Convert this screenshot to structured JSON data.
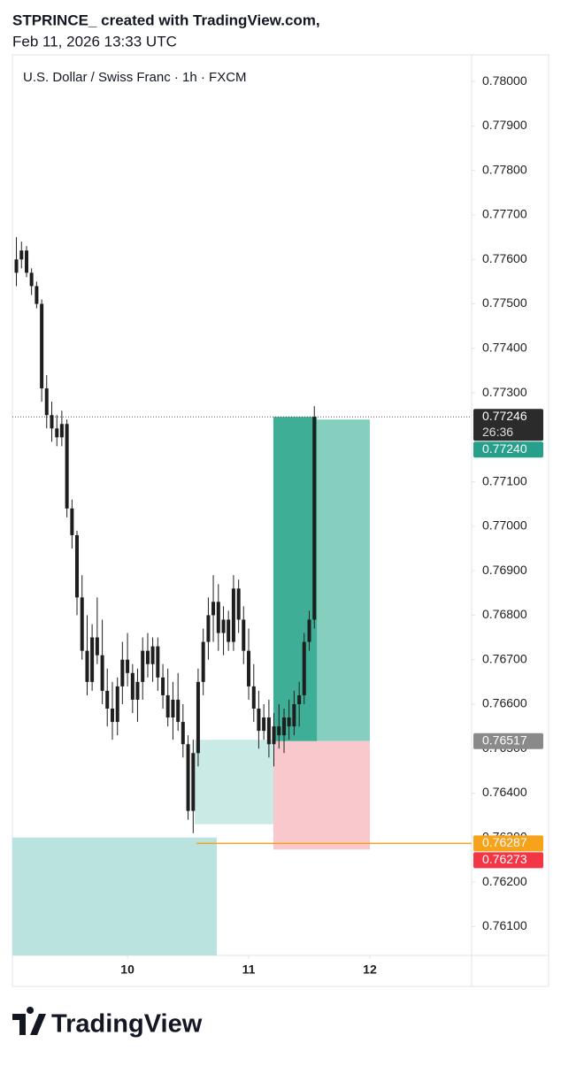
{
  "header": {
    "line1": "STPRINCE_ created with TradingView.com,",
    "line2": "Feb 11, 2026 13:33 UTC"
  },
  "chart_data": {
    "type": "candlestick",
    "title": "U.S. Dollar / Swiss Franc · 1h · FXCM",
    "color": "#1e1e1e",
    "x": [
      9.083,
      9.125,
      9.167,
      9.208,
      9.25,
      9.292,
      9.333,
      9.375,
      9.417,
      9.458,
      9.5,
      9.542,
      9.583,
      9.625,
      9.667,
      9.708,
      9.75,
      9.792,
      9.833,
      9.875,
      9.917,
      9.958,
      10,
      10.042,
      10.083,
      10.125,
      10.167,
      10.208,
      10.25,
      10.292,
      10.333,
      10.375,
      10.417,
      10.458,
      10.5,
      10.542,
      10.583,
      10.625,
      10.667,
      10.708,
      10.75,
      10.792,
      10.833,
      10.875,
      10.917,
      10.958,
      11,
      11.042,
      11.083,
      11.125,
      11.167,
      11.208,
      11.25,
      11.292,
      11.333,
      11.375,
      11.417,
      11.458,
      11.5,
      11.542
    ],
    "open": [
      0.7757,
      0.776,
      0.7762,
      0.7757,
      0.7754,
      0.775,
      0.7731,
      0.7725,
      0.7722,
      0.772,
      0.7723,
      0.7704,
      0.7698,
      0.7684,
      0.7672,
      0.7665,
      0.7675,
      0.7671,
      0.7663,
      0.7659,
      0.7656,
      0.7664,
      0.767,
      0.7667,
      0.7661,
      0.7665,
      0.7672,
      0.7669,
      0.7673,
      0.7666,
      0.7662,
      0.7657,
      0.7661,
      0.7656,
      0.7651,
      0.7636,
      0.7649,
      0.7665,
      0.7674,
      0.768,
      0.7683,
      0.7676,
      0.7679,
      0.7674,
      0.7686,
      0.7679,
      0.7672,
      0.7664,
      0.7659,
      0.7654,
      0.7657,
      0.7651,
      0.7655,
      0.7653,
      0.7657,
      0.7655,
      0.766,
      0.7662,
      0.7674,
      0.7679
    ],
    "high": [
      0.7765,
      0.7764,
      0.7763,
      0.7758,
      0.7755,
      0.7751,
      0.7734,
      0.7728,
      0.7725,
      0.7726,
      0.7724,
      0.7706,
      0.7699,
      0.7689,
      0.768,
      0.7678,
      0.7684,
      0.7679,
      0.7668,
      0.7665,
      0.7666,
      0.7674,
      0.7676,
      0.7669,
      0.7668,
      0.7675,
      0.7676,
      0.7675,
      0.7675,
      0.7669,
      0.7668,
      0.7665,
      0.7667,
      0.766,
      0.7653,
      0.7652,
      0.7668,
      0.7677,
      0.7684,
      0.7689,
      0.7687,
      0.7682,
      0.7681,
      0.7689,
      0.7688,
      0.7682,
      0.7677,
      0.7669,
      0.7663,
      0.766,
      0.7661,
      0.7658,
      0.766,
      0.7659,
      0.7661,
      0.7663,
      0.7665,
      0.7676,
      0.7681,
      0.7727
    ],
    "low": [
      0.7754,
      0.7758,
      0.7756,
      0.7752,
      0.7749,
      0.7728,
      0.7722,
      0.7719,
      0.7718,
      0.7718,
      0.7702,
      0.7695,
      0.768,
      0.767,
      0.7662,
      0.7663,
      0.7669,
      0.766,
      0.7655,
      0.7652,
      0.7653,
      0.766,
      0.7664,
      0.7658,
      0.7656,
      0.7661,
      0.7666,
      0.7665,
      0.7663,
      0.7659,
      0.7655,
      0.7652,
      0.7654,
      0.7648,
      0.7634,
      0.7631,
      0.7646,
      0.7662,
      0.767,
      0.7674,
      0.7672,
      0.7671,
      0.7672,
      0.7672,
      0.7676,
      0.7669,
      0.7661,
      0.7656,
      0.765,
      0.7652,
      0.7648,
      0.7646,
      0.765,
      0.7649,
      0.7652,
      0.7653,
      0.7655,
      0.766,
      0.7672,
      0.7677
    ],
    "close": [
      0.776,
      0.7762,
      0.7757,
      0.7754,
      0.775,
      0.7731,
      0.7725,
      0.7722,
      0.772,
      0.7723,
      0.7704,
      0.7698,
      0.7684,
      0.7672,
      0.7665,
      0.7675,
      0.7671,
      0.7663,
      0.7659,
      0.7656,
      0.7664,
      0.767,
      0.7667,
      0.7661,
      0.7665,
      0.7672,
      0.7669,
      0.7673,
      0.7666,
      0.7662,
      0.7657,
      0.7661,
      0.7656,
      0.7651,
      0.7636,
      0.7649,
      0.7665,
      0.7674,
      0.768,
      0.7683,
      0.7676,
      0.7679,
      0.7674,
      0.7686,
      0.7679,
      0.7672,
      0.7664,
      0.7659,
      0.7654,
      0.7657,
      0.7651,
      0.7655,
      0.7653,
      0.7657,
      0.7655,
      0.766,
      0.7662,
      0.7674,
      0.7679,
      0.77246
    ],
    "xlim": [
      9.05,
      12.84
    ],
    "xticks": [
      10,
      11,
      12
    ],
    "ylim": [
      0.76035,
      0.7806
    ],
    "yticks": [
      {
        "value": 0.761,
        "label": "0.76100"
      },
      {
        "value": 0.762,
        "label": "0.76200"
      },
      {
        "value": 0.763,
        "label": "0.76300"
      },
      {
        "value": 0.764,
        "label": "0.76400"
      },
      {
        "value": 0.765,
        "label": "0.76500"
      },
      {
        "value": 0.766,
        "label": "0.76600"
      },
      {
        "value": 0.767,
        "label": "0.76700"
      },
      {
        "value": 0.768,
        "label": "0.76800"
      },
      {
        "value": 0.769,
        "label": "0.76900"
      },
      {
        "value": 0.77,
        "label": "0.77000"
      },
      {
        "value": 0.771,
        "label": "0.77100"
      },
      {
        "value": 0.772,
        "label": "0.77200"
      },
      {
        "value": 0.773,
        "label": "0.77300"
      },
      {
        "value": 0.774,
        "label": "0.77400"
      },
      {
        "value": 0.775,
        "label": "0.77500"
      },
      {
        "value": 0.776,
        "label": "0.77600"
      },
      {
        "value": 0.777,
        "label": "0.77700"
      },
      {
        "value": 0.778,
        "label": "0.77800"
      },
      {
        "value": 0.779,
        "label": "0.77900"
      },
      {
        "value": 0.78,
        "label": "0.78000"
      }
    ],
    "zones": [
      {
        "x": [
          9.05,
          10.737
        ],
        "y": [
          0.76035,
          0.763
        ],
        "color": "#b2dfdb"
      },
      {
        "x": [
          10.555,
          11.321
        ],
        "y": [
          0.7633,
          0.7652
        ],
        "color": "#c4e8e2"
      }
    ],
    "position": {
      "x": [
        11.204,
        12.0
      ],
      "entry": 0.76517,
      "target": 0.7724,
      "stop": 0.76273,
      "profit_color": "#86cfbf",
      "active_color": "#3fae97",
      "loss_color": "#f8c8cc"
    },
    "hline": {
      "value": 0.76287,
      "x_start": 10.569,
      "color": "#f7a21b"
    },
    "price_labels": [
      {
        "value": 0.77246,
        "label": "0.77246",
        "countdown": "26:36",
        "color": "#2b2b2b"
      },
      {
        "value": 0.7724,
        "label": "0.77240",
        "color": "#26a08a"
      },
      {
        "value": 0.76517,
        "label": "0.76517",
        "color": "#8a8a8a"
      },
      {
        "value": 0.76287,
        "label": "0.76287",
        "color": "#f7a21b"
      },
      {
        "value": 0.76273,
        "label": "0.76273",
        "color": "#f23645"
      }
    ]
  },
  "footer": {
    "brand": "TradingView"
  }
}
